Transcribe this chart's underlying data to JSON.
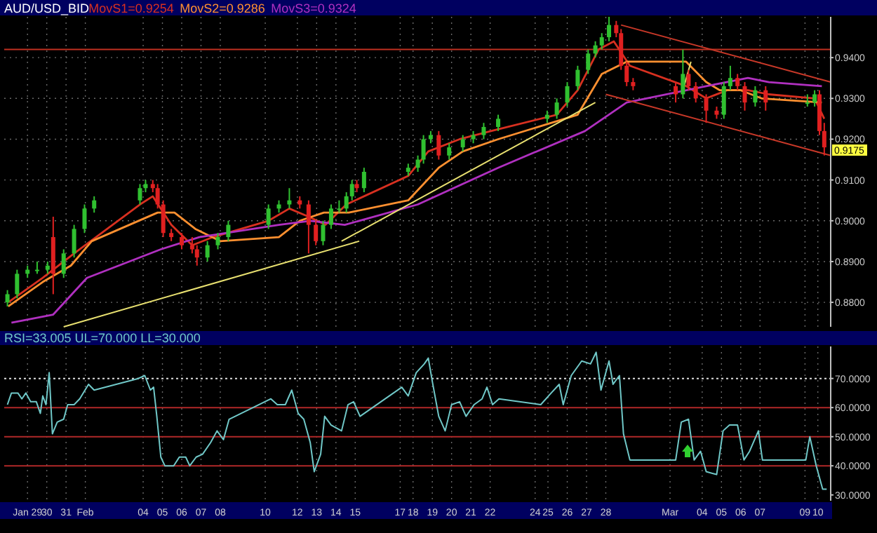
{
  "chart_data": [
    {
      "type": "candlestick",
      "title": "AUD/USD_BID",
      "grid": true,
      "tick_labels": "y",
      "x": [
        "--01-28T11:00",
        "--01-28T23:00",
        "--01-29T12:00",
        "--01-30T00:00",
        "--01-30T13:00",
        "--01-30T20:00",
        "--01-31T09:00",
        "--01-31T22:00",
        "--02-01T11:00",
        "--02-01T23:00",
        "--02-04T08:00",
        "--02-04T15:00",
        "--02-05T00:00",
        "--02-05T06:00",
        "--02-05T13:00",
        "--02-05T23:00",
        "--02-06T12:00",
        "--02-07T01:00",
        "--02-07T07:00",
        "--02-07T20:00",
        "--02-08T09:00",
        "--02-08T22:00",
        "--02-11T00:00",
        "--02-11T13:00",
        "--02-12T02:00",
        "--02-12T15:00",
        "--02-13T02:00",
        "--02-13T11:00",
        "--02-13T20:00",
        "--02-14T06:00",
        "--02-14T16:00",
        "--02-15T01:00",
        "--02-15T08:00",
        "--02-15T14:00",
        "--02-15T23:00",
        "--02-18T06:00",
        "--02-18T18:00",
        "--02-19T01:00",
        "--02-19T10:00",
        "--02-19T20:00",
        "--02-20T09:00",
        "--02-21T02:00",
        "--02-21T15:00",
        "--02-22T04:00",
        "--02-22T22:00",
        "--02-25T11:00",
        "--02-25T23:00",
        "--02-26T12:00",
        "--02-27T01:00",
        "--02-27T14:00",
        "--02-27T23:00",
        "--02-28T07:00",
        "--02-28T16:00",
        "--02-29T01:00",
        "--02-29T07:00",
        "--02-29T14:00",
        "--02-29T22:00",
        "--03-03T03:00",
        "--03-03T12:00",
        "--03-03T19:00",
        "--03-04T04:00",
        "--03-04T17:00",
        "--03-05T06:00",
        "--03-05T15:00",
        "--03-05T23:00",
        "--03-06T08:00",
        "--03-06T17:00",
        "--03-07T06:00",
        "--03-07T19:00",
        "--03-09T23:00",
        "--03-10T08:00",
        "--03-10T14:00",
        "--03-10T20:00"
      ],
      "ohlc": [
        [
          0.88,
          0.883,
          0.879,
          0.882
        ],
        [
          0.882,
          0.888,
          0.881,
          0.887
        ],
        [
          0.887,
          0.889,
          0.886,
          0.888
        ],
        [
          0.888,
          0.89,
          0.887,
          0.888
        ],
        [
          0.888,
          0.89,
          0.887,
          0.889
        ],
        [
          0.896,
          0.901,
          0.882,
          0.887
        ],
        [
          0.887,
          0.893,
          0.886,
          0.892
        ],
        [
          0.892,
          0.899,
          0.891,
          0.898
        ],
        [
          0.898,
          0.904,
          0.897,
          0.903
        ],
        [
          0.903,
          0.906,
          0.902,
          0.905
        ],
        [
          0.905,
          0.909,
          0.904,
          0.908
        ],
        [
          0.908,
          0.91,
          0.907,
          0.909
        ],
        [
          0.909,
          0.91,
          0.907,
          0.908
        ],
        [
          0.908,
          0.909,
          0.903,
          0.904
        ],
        [
          0.904,
          0.905,
          0.896,
          0.897
        ],
        [
          0.897,
          0.898,
          0.895,
          0.896
        ],
        [
          0.896,
          0.897,
          0.893,
          0.894
        ],
        [
          0.894,
          0.896,
          0.892,
          0.893
        ],
        [
          0.893,
          0.894,
          0.889,
          0.891
        ],
        [
          0.891,
          0.895,
          0.89,
          0.894
        ],
        [
          0.894,
          0.897,
          0.893,
          0.896
        ],
        [
          0.896,
          0.9,
          0.895,
          0.899
        ],
        [
          0.899,
          0.904,
          0.898,
          0.903
        ],
        [
          0.903,
          0.905,
          0.902,
          0.904
        ],
        [
          0.904,
          0.908,
          0.903,
          0.905
        ],
        [
          0.905,
          0.906,
          0.903,
          0.904
        ],
        [
          0.904,
          0.905,
          0.892,
          0.899
        ],
        [
          0.899,
          0.9,
          0.894,
          0.895
        ],
        [
          0.895,
          0.9,
          0.894,
          0.899
        ],
        [
          0.899,
          0.904,
          0.898,
          0.903
        ],
        [
          0.903,
          0.905,
          0.902,
          0.903
        ],
        [
          0.903,
          0.907,
          0.902,
          0.906
        ],
        [
          0.906,
          0.91,
          0.905,
          0.909
        ],
        [
          0.909,
          0.91,
          0.907,
          0.908
        ],
        [
          0.908,
          0.913,
          0.907,
          0.912
        ],
        [
          0.912,
          0.914,
          0.911,
          0.913
        ],
        [
          0.913,
          0.916,
          0.912,
          0.915
        ],
        [
          0.915,
          0.921,
          0.914,
          0.92
        ],
        [
          0.92,
          0.922,
          0.919,
          0.921
        ],
        [
          0.921,
          0.922,
          0.915,
          0.916
        ],
        [
          0.916,
          0.919,
          0.915,
          0.918
        ],
        [
          0.918,
          0.921,
          0.917,
          0.92
        ],
        [
          0.92,
          0.922,
          0.919,
          0.921
        ],
        [
          0.921,
          0.924,
          0.92,
          0.923
        ],
        [
          0.923,
          0.926,
          0.922,
          0.925
        ],
        [
          0.925,
          0.927,
          0.924,
          0.926
        ],
        [
          0.926,
          0.93,
          0.925,
          0.929
        ],
        [
          0.929,
          0.934,
          0.928,
          0.933
        ],
        [
          0.933,
          0.938,
          0.932,
          0.937
        ],
        [
          0.937,
          0.942,
          0.936,
          0.941
        ],
        [
          0.941,
          0.944,
          0.94,
          0.943
        ],
        [
          0.943,
          0.946,
          0.942,
          0.945
        ],
        [
          0.945,
          0.95,
          0.944,
          0.948
        ],
        [
          0.948,
          0.949,
          0.945,
          0.946
        ],
        [
          0.946,
          0.947,
          0.937,
          0.938
        ],
        [
          0.938,
          0.939,
          0.933,
          0.934
        ],
        [
          0.934,
          0.935,
          0.932,
          0.933
        ],
        [
          0.933,
          0.934,
          0.929,
          0.931
        ],
        [
          0.931,
          0.942,
          0.93,
          0.936
        ],
        [
          0.936,
          0.937,
          0.932,
          0.933
        ],
        [
          0.933,
          0.934,
          0.929,
          0.93
        ],
        [
          0.93,
          0.931,
          0.924,
          0.927
        ],
        [
          0.927,
          0.928,
          0.925,
          0.926
        ],
        [
          0.926,
          0.934,
          0.925,
          0.933
        ],
        [
          0.933,
          0.938,
          0.932,
          0.935
        ],
        [
          0.935,
          0.936,
          0.932,
          0.933
        ],
        [
          0.933,
          0.934,
          0.927,
          0.929
        ],
        [
          0.929,
          0.933,
          0.928,
          0.932
        ],
        [
          0.932,
          0.933,
          0.927,
          0.929
        ],
        [
          0.929,
          0.931,
          0.928,
          0.929
        ],
        [
          0.929,
          0.932,
          0.928,
          0.931
        ],
        [
          0.931,
          0.932,
          0.921,
          0.922
        ],
        [
          0.922,
          0.924,
          0.916,
          0.918
        ]
      ],
      "series": [
        {
          "name": "MovS1=0.9254",
          "type": "line",
          "color": "#d83020",
          "x": [
            "--01-28T12:00",
            "--01-30T07:00",
            "--01-31T22:00",
            "--02-04T08:00",
            "--02-05T00:00",
            "--02-05T23:00",
            "--02-07T01:00",
            "--02-08T03:00",
            "--02-11T00:00",
            "--02-12T02:00",
            "--02-13T02:00",
            "--02-13T23:00",
            "--02-15T01:00",
            "--02-18T06:00",
            "--02-19T07:00",
            "--02-20T22:00",
            "--02-22T13:00",
            "--02-25T23:00",
            "--02-27T01:00",
            "--02-28T03:00",
            "--02-28T22:00",
            "--02-29T18:00",
            "--03-03T16:00",
            "--03-04T17:00",
            "--03-05T19:00",
            "--03-06T21:00",
            "--03-07T23:00",
            "--03-10T08:00",
            "--03-10T20:00"
          ],
          "values": [
            0.88,
            0.886,
            0.892,
            0.904,
            0.906,
            0.899,
            0.894,
            0.896,
            0.9,
            0.903,
            0.901,
            0.899,
            0.904,
            0.911,
            0.917,
            0.92,
            0.922,
            0.926,
            0.932,
            0.942,
            0.944,
            0.938,
            0.933,
            0.93,
            0.932,
            0.932,
            0.931,
            0.93,
            0.925
          ]
        },
        {
          "name": "MovS2=0.9286",
          "type": "line",
          "color": "#ff9030",
          "x": [
            "--01-28T12:00",
            "--01-30T07:00",
            "--01-31T18:00",
            "--02-01T20:00",
            "--02-05T06:00",
            "--02-06T03:00",
            "--02-07T05:00",
            "--02-08T12:00",
            "--02-11T13:00",
            "--02-12T15:00",
            "--02-13T21:00",
            "--02-15T04:00",
            "--02-18T06:00",
            "--02-19T20:00",
            "--02-21T02:00",
            "--02-22T22:00",
            "--02-27T01:00",
            "--02-28T07:00",
            "--02-29T14:00",
            "--03-03T16:00",
            "--03-04T17:00",
            "--03-05T10:00",
            "--03-06T12:00",
            "--03-07T14:00",
            "--03-10T17:00"
          ],
          "values": [
            0.879,
            0.885,
            0.889,
            0.895,
            0.902,
            0.902,
            0.898,
            0.895,
            0.896,
            0.9,
            0.902,
            0.902,
            0.905,
            0.913,
            0.917,
            0.92,
            0.926,
            0.936,
            0.939,
            0.939,
            0.934,
            0.932,
            0.932,
            0.93,
            0.929
          ]
        },
        {
          "name": "MovS3=0.9324",
          "type": "line",
          "color": "#b030c0",
          "x": [
            "--01-28T16:00",
            "--01-30T20:00",
            "--02-01T14:00",
            "--02-05T10:00",
            "--02-07T10:00",
            "--02-11T13:00",
            "--02-13T04:00",
            "--02-14T23:00",
            "--02-18T18:00",
            "--02-22T22:00",
            "--02-27T10:00",
            "--02-29T14:00",
            "--03-04T17:00",
            "--03-06T21:00",
            "--03-07T23:00",
            "--03-10T17:00"
          ],
          "values": [
            0.875,
            0.877,
            0.886,
            0.893,
            0.896,
            0.899,
            0.9,
            0.899,
            0.904,
            0.913,
            0.922,
            0.929,
            0.933,
            0.935,
            0.934,
            0.933
          ]
        },
        {
          "type": "line",
          "color": "#e8e070",
          "x": [
            "--01-31T09:00",
            "--02-15T17:00"
          ],
          "values": [
            0.874,
            0.895
          ]
        },
        {
          "type": "line",
          "color": "#e8e070",
          "x": [
            "--02-14T19:00",
            "--02-27T23:00"
          ],
          "values": [
            0.895,
            0.929
          ]
        },
        {
          "type": "line",
          "color": "#e8e070",
          "x": [
            "--03-03T12:00",
            "--03-03T22:00"
          ],
          "values": [
            0.932,
            0.939
          ]
        },
        {
          "type": "line",
          "color": "#c83828",
          "x": [
            "--02-29T07:00",
            "--03-11T04:00"
          ],
          "values": [
            0.948,
            0.934
          ]
        },
        {
          "type": "line",
          "color": "#c83828",
          "x": [
            "--02-28T12:00",
            "--03-11T04:00"
          ],
          "values": [
            0.931,
            0.916
          ]
        }
      ],
      "ref_lines": [
        {
          "axis": "y",
          "value": 0.942,
          "color": "#c03020"
        }
      ],
      "annotations": [
        {
          "text": "0.9175",
          "x": "--03-10T20:00",
          "y": 0.9175
        }
      ],
      "xlim": [
        "--01-28T07:00",
        "--03-11T04:00"
      ],
      "xticks": [
        {
          "value": "--01-29T12:00",
          "label": null
        },
        {
          "value": "--01-30T12:00",
          "label": null
        },
        {
          "value": "--01-31T12:00",
          "label": null
        },
        {
          "value": "--02-01T12:00",
          "label": null
        },
        {
          "value": "--02-04T12:00",
          "label": null
        },
        {
          "value": "--02-05T12:00",
          "label": null
        },
        {
          "value": "--02-06T12:00",
          "label": null
        },
        {
          "value": "--02-07T12:00",
          "label": null
        },
        {
          "value": "--02-08T12:00",
          "label": null
        },
        {
          "value": "--02-10T20:00",
          "label": null
        },
        {
          "value": "--02-12T12:00",
          "label": null
        },
        {
          "value": "--02-13T12:00",
          "label": null
        },
        {
          "value": "--02-14T12:00",
          "label": null
        },
        {
          "value": "--02-15T12:00",
          "label": null
        },
        {
          "value": "--02-17T20:00",
          "label": null
        },
        {
          "value": "--02-18T12:00",
          "label": null
        },
        {
          "value": "--02-19T12:00",
          "label": null
        },
        {
          "value": "--02-20T12:00",
          "label": null
        },
        {
          "value": "--02-21T12:00",
          "label": null
        },
        {
          "value": "--02-22T12:00",
          "label": null
        },
        {
          "value": "--02-24T20:00",
          "label": null
        },
        {
          "value": "--02-25T12:00",
          "label": null
        },
        {
          "value": "--02-26T12:00",
          "label": null
        },
        {
          "value": "--02-27T12:00",
          "label": null
        },
        {
          "value": "--02-28T12:00",
          "label": null
        },
        {
          "value": "--03-02T20:00",
          "label": null
        },
        {
          "value": "--03-04T12:00",
          "label": null
        },
        {
          "value": "--03-05T12:00",
          "label": null
        },
        {
          "value": "--03-06T12:00",
          "label": null
        },
        {
          "value": "--03-07T12:00",
          "label": null
        },
        {
          "value": "--03-09T20:00",
          "label": null
        },
        {
          "value": "--03-10T12:00",
          "label": null
        }
      ],
      "ylim": [
        0.874,
        0.95
      ],
      "yticks": [
        {
          "value": 0.88,
          "label": "0.8800"
        },
        {
          "value": 0.89,
          "label": "0.8900"
        },
        {
          "value": 0.9,
          "label": "0.9000"
        },
        {
          "value": 0.91,
          "label": "0.9100"
        },
        {
          "value": 0.92,
          "label": "0.9200"
        },
        {
          "value": 0.93,
          "label": "0.9300"
        },
        {
          "value": 0.94,
          "label": "0.9400"
        }
      ]
    },
    {
      "type": "line",
      "title": "RSI=33.005 UL=70.000 LL=30.000",
      "grid": "x",
      "series": [
        {
          "color": "#70c8c8",
          "x": [
            "--01-28T11:00",
            "--01-28T16:00",
            "--01-29T00:00",
            "--01-29T05:00",
            "--01-29T10:00",
            "--01-29T16:00",
            "--01-29T23:00",
            "--01-30T04:00",
            "--01-30T07:00",
            "--01-30T11:00",
            "--01-30T15:00",
            "--01-30T19:00",
            "--01-31T01:00",
            "--01-31T09:00",
            "--01-31T14:00",
            "--01-31T22:00",
            "--02-01T05:00",
            "--02-01T16:00",
            "--02-01T23:00",
            "--02-04T06:00",
            "--02-04T14:00",
            "--02-04T21:00",
            "--02-05T01:00",
            "--02-05T05:00",
            "--02-05T10:00",
            "--02-05T15:00",
            "--02-06T02:00",
            "--02-06T09:00",
            "--02-06T17:00",
            "--02-06T22:00",
            "--02-07T06:00",
            "--02-07T14:00",
            "--02-08T00:00",
            "--02-08T08:00",
            "--02-08T16:00",
            "--02-08T23:00",
            "--02-11T03:00",
            "--02-11T11:00",
            "--02-11T21:00",
            "--02-12T05:00",
            "--02-12T13:00",
            "--02-12T20:00",
            "--02-13T04:00",
            "--02-13T09:00",
            "--02-13T17:00",
            "--02-13T22:00",
            "--02-14T06:00",
            "--02-14T19:00",
            "--02-15T03:00",
            "--02-15T10:00",
            "--02-15T18:00",
            "--02-17T22:00",
            "--02-18T06:00",
            "--02-18T16:00",
            "--02-19T02:00",
            "--02-19T07:00",
            "--02-19T12:00",
            "--02-19T20:00",
            "--02-20T04:00",
            "--02-20T12:00",
            "--02-20T22:00",
            "--02-21T06:00",
            "--02-21T16:00",
            "--02-22T02:00",
            "--02-22T08:00",
            "--02-22T15:00",
            "--02-22T23:00",
            "--02-25T03:00",
            "--02-25T16:00",
            "--02-26T02:00",
            "--02-26T07:00",
            "--02-26T17:00",
            "--02-27T06:00",
            "--02-27T17:00",
            "--02-28T00:00",
            "--02-28T06:00",
            "--02-28T16:00",
            "--02-28T21:00",
            "--02-29T05:00",
            "--02-29T10:00",
            "--02-29T18:00",
            "--03-03T03:00",
            "--03-03T10:00",
            "--03-03T19:00",
            "--03-04T02:00",
            "--03-04T10:00",
            "--03-04T17:00",
            "--03-05T06:00",
            "--03-05T14:00",
            "--03-05T22:00",
            "--03-06T08:00",
            "--03-06T16:00",
            "--03-06T23:00",
            "--03-07T10:00",
            "--03-07T15:00",
            "--03-09T21:00",
            "--03-10T02:00",
            "--03-10T10:00",
            "--03-10T18:00",
            "--03-10T23:00"
          ],
          "values": [
            61,
            65,
            65,
            63,
            65,
            62,
            62,
            58,
            64,
            61,
            72,
            51,
            55,
            56,
            61,
            61,
            63,
            68,
            66,
            70,
            71,
            66,
            67,
            57,
            43,
            40,
            40,
            43,
            43,
            40,
            43,
            44,
            48,
            52,
            49,
            56,
            63,
            61,
            61,
            66,
            58,
            56,
            48,
            38,
            44,
            57,
            54,
            52,
            61,
            62,
            57,
            67,
            64,
            72,
            75,
            77,
            69,
            57,
            52,
            61,
            62,
            57,
            61,
            63,
            67,
            61,
            63,
            61,
            65,
            68,
            61,
            71,
            76,
            75,
            79,
            66,
            76,
            68,
            71,
            51,
            42,
            42,
            55,
            56,
            42,
            45,
            38,
            37,
            52,
            54,
            54,
            42,
            45,
            52,
            42,
            42,
            50,
            40,
            32,
            32
          ]
        }
      ],
      "ref_lines": [
        {
          "axis": "y",
          "value": 70,
          "color": "#e0e0e0",
          "line_style": "dotted"
        },
        {
          "axis": "y",
          "value": 60,
          "color": "#b02828"
        },
        {
          "axis": "y",
          "value": 50,
          "color": "#b02828"
        },
        {
          "axis": "y",
          "value": 40,
          "color": "#b02828"
        }
      ],
      "xlim": [
        "--01-28T07:00",
        "--03-11T04:00"
      ],
      "xticks": [
        {
          "value": "--01-29T12:00",
          "label": "Jan 29"
        },
        {
          "value": "--01-30T12:00",
          "label": "30"
        },
        {
          "value": "--01-31T12:00",
          "label": "31"
        },
        {
          "value": "--02-01T12:00",
          "label": "Feb"
        },
        {
          "value": "--02-04T12:00",
          "label": "04"
        },
        {
          "value": "--02-05T12:00",
          "label": "05"
        },
        {
          "value": "--02-06T12:00",
          "label": "06"
        },
        {
          "value": "--02-07T12:00",
          "label": "07"
        },
        {
          "value": "--02-08T12:00",
          "label": "08"
        },
        {
          "value": "--02-10T20:00",
          "label": "10"
        },
        {
          "value": "--02-12T12:00",
          "label": "12"
        },
        {
          "value": "--02-13T12:00",
          "label": "13"
        },
        {
          "value": "--02-14T12:00",
          "label": "14"
        },
        {
          "value": "--02-15T12:00",
          "label": "15"
        },
        {
          "value": "--02-17T20:00",
          "label": "17"
        },
        {
          "value": "--02-18T12:00",
          "label": "18"
        },
        {
          "value": "--02-19T12:00",
          "label": "19"
        },
        {
          "value": "--02-20T12:00",
          "label": "20"
        },
        {
          "value": "--02-21T12:00",
          "label": "21"
        },
        {
          "value": "--02-22T12:00",
          "label": "22"
        },
        {
          "value": "--02-24T20:00",
          "label": "24"
        },
        {
          "value": "--02-25T12:00",
          "label": "25"
        },
        {
          "value": "--02-26T12:00",
          "label": "26"
        },
        {
          "value": "--02-27T12:00",
          "label": "27"
        },
        {
          "value": "--02-28T12:00",
          "label": "28"
        },
        {
          "value": "--03-02T20:00",
          "label": "Mar"
        },
        {
          "value": "--03-04T12:00",
          "label": "04"
        },
        {
          "value": "--03-05T12:00",
          "label": "05"
        },
        {
          "value": "--03-06T12:00",
          "label": "06"
        },
        {
          "value": "--03-07T12:00",
          "label": "07"
        },
        {
          "value": "--03-09T20:00",
          "label": "09"
        },
        {
          "value": "--03-10T12:00",
          "label": "10"
        }
      ],
      "ylim": [
        28,
        81
      ],
      "yticks": [
        {
          "value": 30,
          "label": "30.0000"
        },
        {
          "value": 40,
          "label": "40.0000"
        },
        {
          "value": 50,
          "label": "50.0000"
        },
        {
          "value": 60,
          "label": "60.0000"
        },
        {
          "value": 70,
          "label": "70.0000"
        }
      ]
    }
  ]
}
